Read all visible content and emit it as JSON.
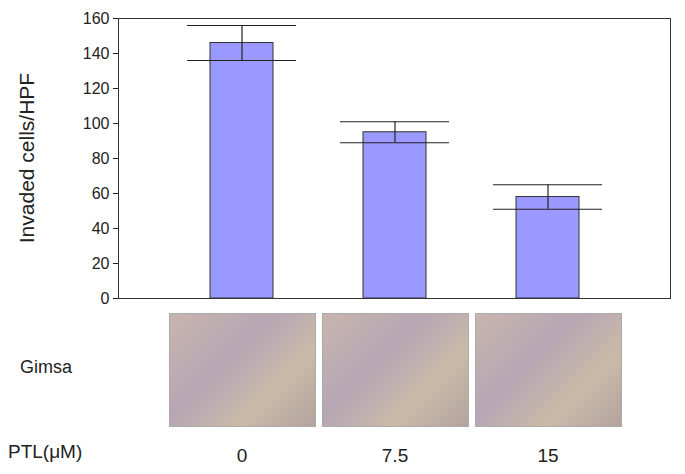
{
  "chart_data": {
    "type": "bar",
    "categories": [
      "0",
      "7.5",
      "15"
    ],
    "values": [
      146,
      95,
      58
    ],
    "errors": [
      10,
      6,
      7
    ],
    "color": "#9999ff",
    "ylim": [
      0,
      160
    ],
    "yticks": [
      0,
      20,
      40,
      60,
      80,
      100,
      120,
      140,
      160
    ],
    "y_label": "Invaded cells/HPF",
    "x_label": "PTL(μM)",
    "annotations": [
      "Gimsa"
    ],
    "grid": false
  }
}
